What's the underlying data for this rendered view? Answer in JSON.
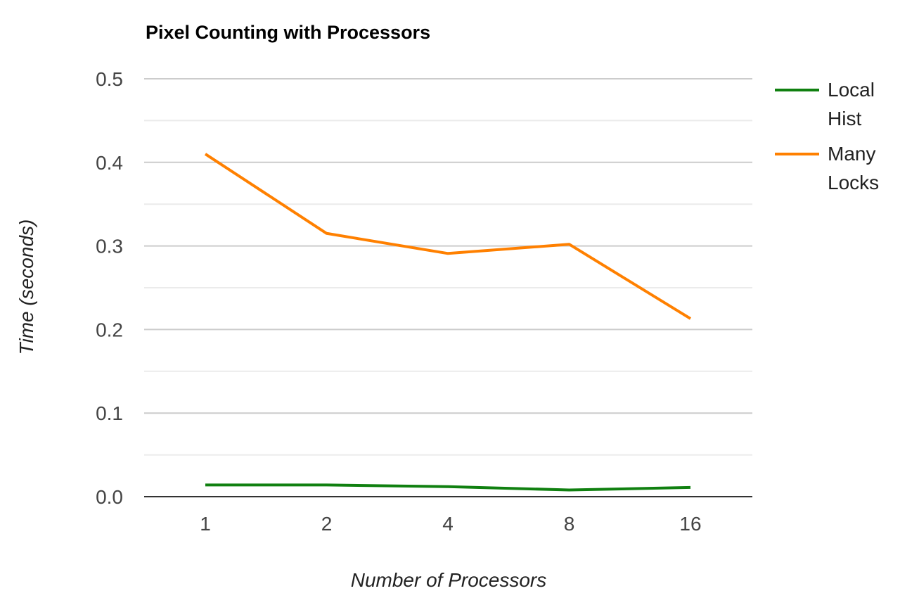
{
  "chart_data": {
    "type": "line",
    "title": "Pixel Counting with Processors",
    "xlabel": "Number of Processors",
    "ylabel": "Time (seconds)",
    "categories": [
      "1",
      "2",
      "4",
      "8",
      "16"
    ],
    "ylim": [
      0,
      0.5
    ],
    "yticks": [
      "0.0",
      "0.1",
      "0.2",
      "0.3",
      "0.4",
      "0.5"
    ],
    "grid": true,
    "legend_position": "right",
    "series": [
      {
        "name": "Local Hist",
        "name_lines": [
          "Local",
          "Hist"
        ],
        "color": "#108010",
        "values": [
          0.014,
          0.014,
          0.012,
          0.008,
          0.011
        ]
      },
      {
        "name": "Many Locks",
        "name_lines": [
          "Many",
          "Locks"
        ],
        "color": "#ff8000",
        "values": [
          0.41,
          0.315,
          0.291,
          0.302,
          0.213
        ]
      }
    ]
  }
}
